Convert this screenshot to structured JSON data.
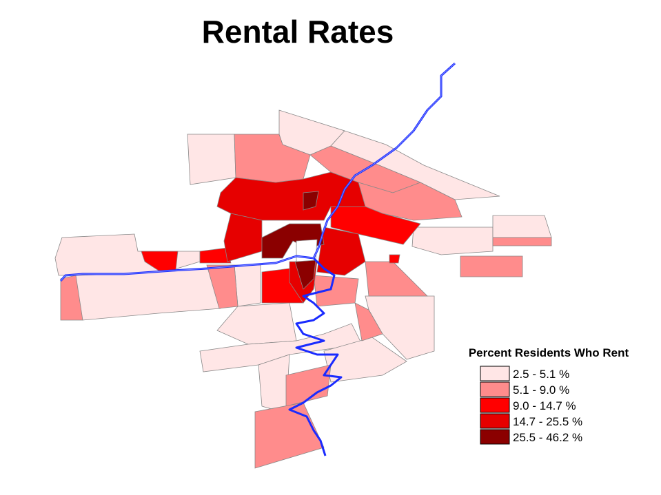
{
  "title": "Rental Rates",
  "legend": {
    "title": "Percent Residents Who Rent",
    "items": [
      {
        "label": "2.5 - 5.1 %",
        "color": "#ffe6e6"
      },
      {
        "label": "5.1 - 9.0 %",
        "color": "#ff8c8c"
      },
      {
        "label": "9.0 - 14.7 %",
        "color": "#ff0000"
      },
      {
        "label": "14.7 - 25.5 %",
        "color": "#e60000"
      },
      {
        "label": "25.5 - 46.2 %",
        "color": "#8b0000"
      }
    ]
  }
}
